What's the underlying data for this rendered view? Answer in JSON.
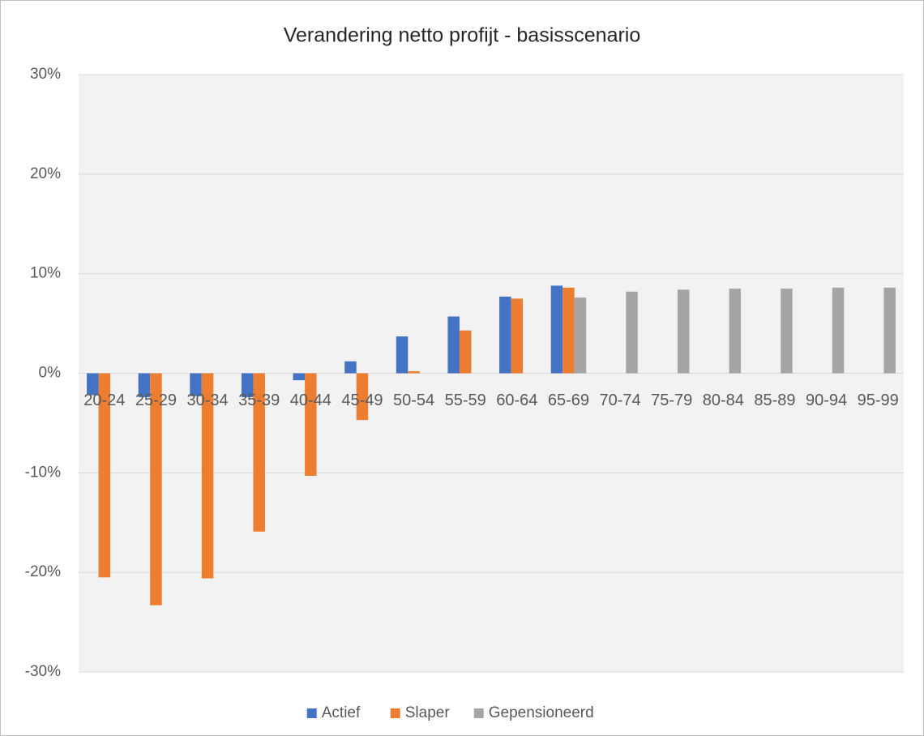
{
  "chart_data": {
    "type": "bar",
    "title": "Verandering netto profijt - basisscenario",
    "categories": [
      "20-24",
      "25-29",
      "30-34",
      "35-39",
      "40-44",
      "45-49",
      "50-54",
      "55-59",
      "60-64",
      "65-69",
      "70-74",
      "75-79",
      "80-84",
      "85-89",
      "90-94",
      "95-99"
    ],
    "series": [
      {
        "name": "Actief",
        "color": "#4472c4",
        "values": [
          -2.2,
          -2.4,
          -2.3,
          -2.4,
          -0.7,
          1.2,
          3.7,
          5.7,
          7.7,
          8.8,
          null,
          null,
          null,
          null,
          null,
          null
        ]
      },
      {
        "name": "Slaper",
        "color": "#ed7d31",
        "values": [
          -20.5,
          -23.3,
          -20.6,
          -15.9,
          -10.3,
          -4.7,
          0.2,
          4.3,
          7.5,
          8.6,
          null,
          null,
          null,
          null,
          null,
          null
        ]
      },
      {
        "name": "Gepensioneerd",
        "color": "#a5a5a5",
        "values": [
          null,
          null,
          null,
          null,
          null,
          null,
          null,
          null,
          null,
          7.6,
          8.2,
          8.4,
          8.5,
          8.5,
          8.6,
          8.6
        ]
      }
    ],
    "ylim": [
      -30,
      30
    ],
    "yticks": [
      {
        "value": -30,
        "label": "-30%"
      },
      {
        "value": -20,
        "label": "-20%"
      },
      {
        "value": -10,
        "label": "-10%"
      },
      {
        "value": 0,
        "label": "0%"
      },
      {
        "value": 10,
        "label": "10%"
      },
      {
        "value": 20,
        "label": "20%"
      },
      {
        "value": 30,
        "label": "30%"
      }
    ],
    "grid": true,
    "legend": "bottom"
  }
}
